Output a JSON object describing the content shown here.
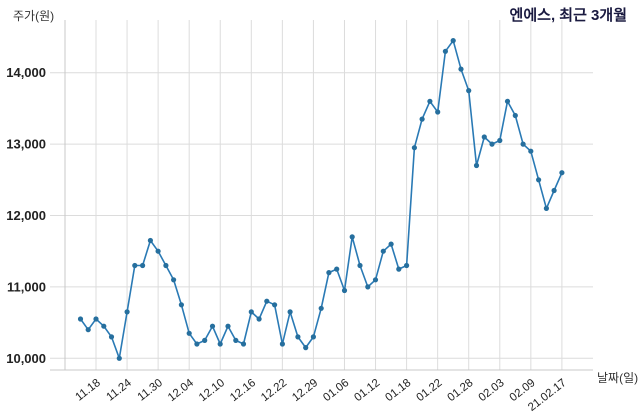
{
  "header": {
    "title": "엔에스, 최근 3개월"
  },
  "axes": {
    "y_label": "주가(원)",
    "x_label": "날짜(일)"
  },
  "chart_data": {
    "type": "line",
    "title": "엔에스, 최근 3개월",
    "ylabel": "주가(원)",
    "xlabel": "날짜(일)",
    "grid": true,
    "legend": false,
    "ylim": [
      9830,
      14740
    ],
    "y_ticks": [
      10000,
      11000,
      12000,
      13000,
      14000
    ],
    "x_tick_labels": [
      "11.18",
      "11.24",
      "11.30",
      "12.04",
      "12.10",
      "12.16",
      "12.22",
      "12.29",
      "01.06",
      "01.12",
      "01.18",
      "01.22",
      "01.28",
      "02.03",
      "02.09",
      "21.02.17"
    ],
    "first_tick_point_index": 2,
    "points_per_tick": 4,
    "line_color": "#2a7ab5",
    "marker_color": "#266f9e",
    "grid_color": "#dcdcdc",
    "axis_color": "#c8c8c8",
    "series": [
      {
        "name": "주가",
        "values": [
          10550,
          10400,
          10550,
          10450,
          10300,
          10000,
          10650,
          11300,
          11300,
          11650,
          11500,
          11300,
          11100,
          10750,
          10350,
          10200,
          10250,
          10450,
          10200,
          10450,
          10250,
          10200,
          10650,
          10550,
          10800,
          10750,
          10200,
          10650,
          10300,
          10150,
          10300,
          10700,
          11200,
          11250,
          10950,
          11700,
          11300,
          11000,
          11100,
          11500,
          11600,
          11250,
          11300,
          12950,
          13350,
          13600,
          13450,
          14300,
          14450,
          14050,
          13750,
          12700,
          13100,
          13000,
          13050,
          13600,
          13400,
          13000,
          12900,
          12500,
          12100,
          12350,
          12600
        ]
      }
    ]
  }
}
